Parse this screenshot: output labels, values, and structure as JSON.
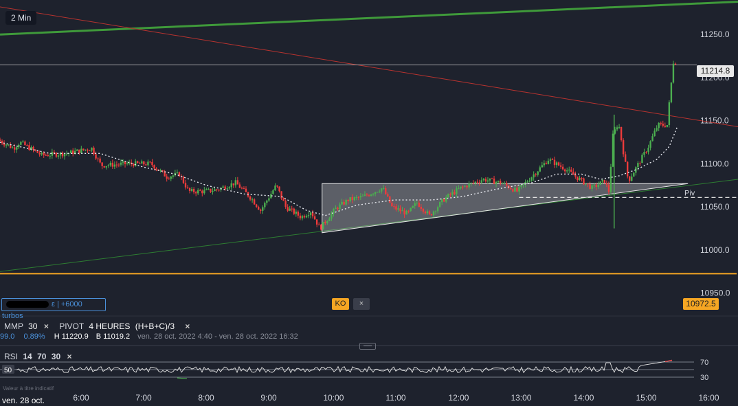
{
  "timeframe": "2 Min",
  "price_labels": {
    "current": "11214.8",
    "ko_level": "10972.5",
    "pivot": "Piv"
  },
  "turbo": {
    "label": "ε | +6000 turbos"
  },
  "ko_button": {
    "label": "KO",
    "close": "×"
  },
  "indicators": {
    "mmp": {
      "name": "MMP",
      "period": "30",
      "close": "×"
    },
    "pivot": {
      "name": "PIVOT",
      "period": "4 HEURES",
      "formula": "(H+B+C)/3",
      "close": "×"
    },
    "stats": {
      "value": "99.0",
      "pct": "0.89%",
      "high": "H 11220.9",
      "low": "B 11019.2",
      "range": "ven. 28 oct. 2022 4:40 - ven. 28 oct. 2022 16:32"
    },
    "rsi": {
      "name": "RSI",
      "p1": "14",
      "p2": "70",
      "p3": "30",
      "close": "×",
      "current": "50"
    }
  },
  "footer_note": "Valeur à titre indicatif",
  "date_label": "ven. 28 oct.",
  "colors": {
    "background": "#1e222d",
    "up": "#4caf50",
    "down": "#ef3b3b",
    "ko": "#f5a623",
    "accent": "#4a90d9"
  },
  "chart_data": {
    "type": "candlestick",
    "title": "",
    "ylim": [
      10925,
      11290
    ],
    "yticks": [
      11250.0,
      11200.0,
      11150.0,
      11100.0,
      11050.0,
      11000.0,
      10950.0
    ],
    "ytick_labels": [
      "11250.0",
      "11200.0",
      "11150.0",
      "11100.0",
      "11050.0",
      "11000.0",
      "10950.0"
    ],
    "xticks": [
      "6:00",
      "7:00",
      "8:00",
      "9:00",
      "10:00",
      "11:00",
      "12:00",
      "13:00",
      "14:00",
      "15:00",
      "16:00"
    ],
    "x_range_hours": [
      4.7,
      16.5
    ],
    "anchors": [
      [
        4.7,
        11128
      ],
      [
        4.95,
        11118
      ],
      [
        5.05,
        11125
      ],
      [
        5.4,
        11110
      ],
      [
        5.8,
        11112
      ],
      [
        6.2,
        11118
      ],
      [
        6.35,
        11098
      ],
      [
        6.75,
        11100
      ],
      [
        7.15,
        11100
      ],
      [
        7.4,
        11085
      ],
      [
        7.6,
        11088
      ],
      [
        7.75,
        11068
      ],
      [
        8.0,
        11068
      ],
      [
        8.2,
        11070
      ],
      [
        8.5,
        11078
      ],
      [
        8.75,
        11060
      ],
      [
        8.9,
        11046
      ],
      [
        9.15,
        11075
      ],
      [
        9.3,
        11050
      ],
      [
        9.55,
        11038
      ],
      [
        9.7,
        11045
      ],
      [
        9.85,
        11025
      ],
      [
        10.1,
        11048
      ],
      [
        10.3,
        11058
      ],
      [
        10.55,
        11062
      ],
      [
        10.85,
        11072
      ],
      [
        11.0,
        11050
      ],
      [
        11.25,
        11042
      ],
      [
        11.4,
        11055
      ],
      [
        11.6,
        11040
      ],
      [
        11.85,
        11060
      ],
      [
        12.1,
        11072
      ],
      [
        12.45,
        11082
      ],
      [
        12.75,
        11078
      ],
      [
        13.0,
        11068
      ],
      [
        13.3,
        11090
      ],
      [
        13.5,
        11105
      ],
      [
        13.75,
        11095
      ],
      [
        14.0,
        11082
      ],
      [
        14.2,
        11072
      ],
      [
        14.4,
        11080
      ],
      [
        14.48,
        11066
      ],
      [
        14.52,
        11130
      ],
      [
        14.62,
        11148
      ],
      [
        14.78,
        11080
      ],
      [
        14.9,
        11095
      ],
      [
        15.1,
        11120
      ],
      [
        15.25,
        11145
      ],
      [
        15.4,
        11145
      ],
      [
        15.5,
        11218
      ]
    ],
    "ma": [
      [
        4.7,
        11125
      ],
      [
        5.5,
        11112
      ],
      [
        6.3,
        11112
      ],
      [
        7.0,
        11096
      ],
      [
        7.5,
        11088
      ],
      [
        8.0,
        11075
      ],
      [
        8.6,
        11065
      ],
      [
        9.2,
        11062
      ],
      [
        9.6,
        11046
      ],
      [
        9.9,
        11040
      ],
      [
        10.4,
        11052
      ],
      [
        11.0,
        11058
      ],
      [
        11.6,
        11058
      ],
      [
        12.1,
        11062
      ],
      [
        12.6,
        11070
      ],
      [
        13.2,
        11078
      ],
      [
        13.6,
        11088
      ],
      [
        14.0,
        11088
      ],
      [
        14.3,
        11082
      ],
      [
        14.6,
        11086
      ],
      [
        14.9,
        11094
      ],
      [
        15.2,
        11105
      ],
      [
        15.4,
        11120
      ],
      [
        15.53,
        11143
      ]
    ],
    "levels": {
      "current": 11214.8,
      "ko": 10972.5,
      "pivot": 11061
    },
    "triangle": {
      "top": 11077,
      "apex_x": 15.7,
      "base": [
        [
          9.85,
          11020
        ],
        [
          15.7,
          11077
        ]
      ]
    },
    "trendlines": {
      "green_upper": [
        [
          4.7,
          11250
        ],
        [
          16.5,
          11288
        ]
      ],
      "red": [
        [
          4.7,
          11282
        ],
        [
          16.5,
          11143
        ]
      ],
      "green_lower": [
        [
          4.7,
          10975
        ],
        [
          16.5,
          11082
        ]
      ]
    },
    "rsi": {
      "levels": [
        70,
        50,
        30
      ]
    }
  }
}
